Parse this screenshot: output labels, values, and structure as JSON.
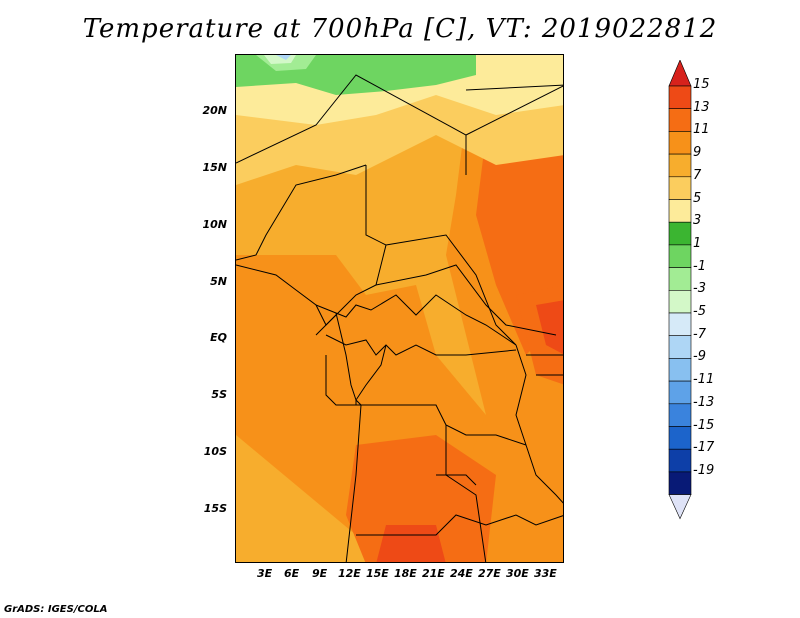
{
  "title": "Temperature at 700hPa [C], VT: 2019022812",
  "credit": "GrADS: IGES/COLA",
  "lat_labels": [
    "20N",
    "15N",
    "10N",
    "5N",
    "EQ",
    "5S",
    "10S",
    "15S"
  ],
  "lon_labels": [
    "3E",
    "6E",
    "9E",
    "12E",
    "15E",
    "18E",
    "21E",
    "24E",
    "27E",
    "30E",
    "33E"
  ],
  "colorbar": {
    "levels": [
      "15",
      "13",
      "11",
      "9",
      "7",
      "5",
      "3",
      "1",
      "-1",
      "-3",
      "-5",
      "-7",
      "-9",
      "-11",
      "-13",
      "-15",
      "-17",
      "-19"
    ],
    "colors": [
      "#d7221c",
      "#ee4a16",
      "#f56d14",
      "#f79119",
      "#f7ad2d",
      "#fbcd5e",
      "#fdeb9a",
      "#3bb531",
      "#6ed561",
      "#a2ec94",
      "#d3f8c8",
      "#d6eaf8",
      "#aed6f5",
      "#88c0f0",
      "#5ea2e8",
      "#3a83dd",
      "#1c64cb",
      "#0d3fa8",
      "#081a76",
      "#dfe3f7"
    ]
  },
  "field_colors": {
    "c7": "#fbcd5e",
    "c5": "#fdeb9a",
    "c3": "#3bb531",
    "c1": "#6ed561",
    "cm1": "#a2ec94",
    "cm3": "#d3f8c8",
    "cm5": "#aed6f5",
    "c9": "#f7ad2d",
    "c11": "#f79119",
    "c13": "#f56d14",
    "c15": "#ee4a16"
  }
}
